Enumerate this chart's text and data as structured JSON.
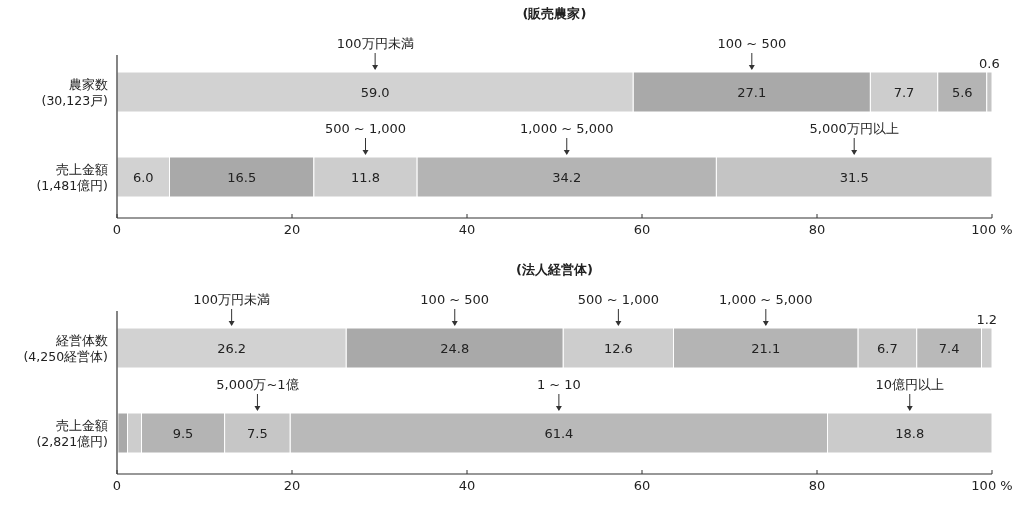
{
  "chart_data": [
    {
      "type": "bar",
      "orientation": "horizontal",
      "stacked": true,
      "title": "(販売農家)",
      "categories": [
        "農家数\n(30,123戸)",
        "売上金額\n(1,481億円)"
      ],
      "xlim": [
        0,
        100
      ],
      "xticks": [
        0,
        20,
        40,
        60,
        80,
        {
          "value": 100,
          "label": "100 %"
        }
      ],
      "series": [
        {
          "name": "100万円未満",
          "color": "#d2d2d2",
          "values": [
            59.0,
            6.0
          ],
          "value_labels": [
            "59.0",
            "6.0"
          ]
        },
        {
          "name": "100 ~ 500",
          "color": "#a9a9a9",
          "values": [
            27.1,
            16.5
          ],
          "value_labels": [
            "27.1",
            "16.5"
          ]
        },
        {
          "name": "500 ~ 1,000",
          "color": "#cdcdcd",
          "values": [
            7.7,
            11.8
          ],
          "value_labels": [
            "7.7",
            "11.8"
          ]
        },
        {
          "name": "1,000 ~ 5,000",
          "color": "#b4b4b4",
          "values": [
            5.6,
            34.2
          ],
          "value_labels": [
            "5.6",
            "34.2"
          ]
        },
        {
          "name": "5,000万円以上",
          "color": "#c4c4c4",
          "values": [
            0.6,
            31.5
          ],
          "value_labels": [
            "0.6",
            "31.5"
          ]
        }
      ]
    },
    {
      "type": "bar",
      "orientation": "horizontal",
      "stacked": true,
      "title": "(法人経営体)",
      "categories": [
        "経営体数\n(4,250経営体)",
        "売上金額\n(2,821億円)"
      ],
      "xlim": [
        0,
        100
      ],
      "xticks": [
        0,
        20,
        40,
        60,
        80,
        {
          "value": 100,
          "label": "100 %"
        }
      ],
      "series": [
        {
          "name": "100万円未満",
          "color": "#d2d2d2",
          "values": [
            26.2,
            0.1
          ],
          "value_labels": [
            "26.2",
            null
          ]
        },
        {
          "name": "100 ~ 500",
          "color": "#a9a9a9",
          "values": [
            24.8,
            1.1
          ],
          "value_labels": [
            "24.8",
            null
          ]
        },
        {
          "name": "500 ~ 1,000",
          "color": "#cdcdcd",
          "values": [
            12.6,
            1.6
          ],
          "value_labels": [
            "12.6",
            null
          ]
        },
        {
          "name": "1,000 ~ 5,000",
          "color": "#b4b4b4",
          "values": [
            21.1,
            9.5
          ],
          "value_labels": [
            "21.1",
            "9.5"
          ]
        },
        {
          "name": "5,000万~1億",
          "color": "#c6c6c6",
          "values": [
            6.7,
            7.5
          ],
          "value_labels": [
            "6.7",
            "7.5"
          ]
        },
        {
          "name": "1 ~ 10",
          "color": "#b9b9b9",
          "values": [
            7.4,
            61.4
          ],
          "value_labels": [
            "7.4",
            "61.4"
          ]
        },
        {
          "name": "10億円以上",
          "color": "#cbcbcb",
          "values": [
            1.2,
            18.8
          ],
          "value_labels": [
            "1.2",
            "18.8"
          ]
        }
      ]
    }
  ]
}
